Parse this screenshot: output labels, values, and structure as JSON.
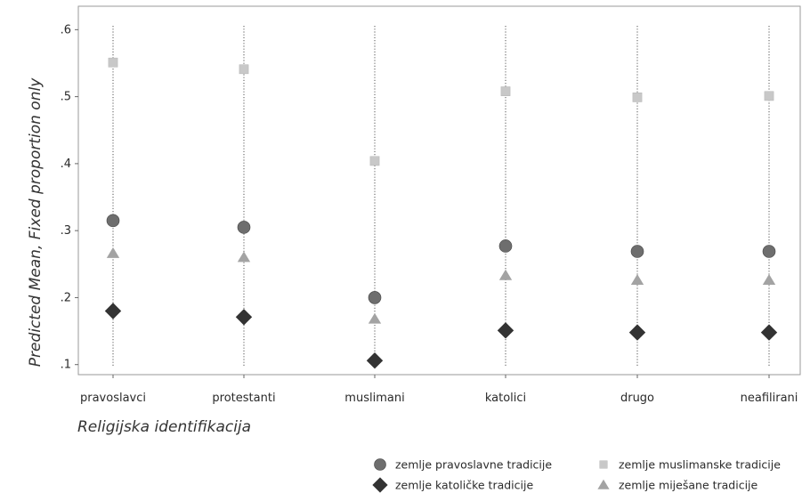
{
  "chart_data": {
    "type": "scatter",
    "xlabel": "Religijska identifikacija",
    "ylabel": "Predicted Mean, Fixed proportion only",
    "categories": [
      "pravoslavci",
      "protestanti",
      "muslimani",
      "katolici",
      "drugo",
      "neafilirani"
    ],
    "yticks": [
      ".1",
      ".2",
      ".3",
      ".4",
      ".5",
      ".6"
    ],
    "ylim": [
      0.085,
      0.635
    ],
    "grid": "vertical dotted lines at each category",
    "legend_position": "bottom-right",
    "series": [
      {
        "name": "zemlje pravoslavne tradicije",
        "marker": "circle",
        "color": "#6e6e6e",
        "values": [
          0.315,
          0.305,
          0.2,
          0.277,
          0.269,
          0.269
        ]
      },
      {
        "name": "zemlje muslimanske tradicije",
        "marker": "square",
        "color": "#c8c8c8",
        "values": [
          0.551,
          0.541,
          0.404,
          0.508,
          0.499,
          0.501
        ]
      },
      {
        "name": "zemlje katoličke tradicije",
        "marker": "diamond",
        "color": "#333333",
        "values": [
          0.18,
          0.171,
          0.106,
          0.151,
          0.148,
          0.148
        ]
      },
      {
        "name": "zemlje miješane tradicije",
        "marker": "triangle",
        "color": "#a3a3a3",
        "values": [
          0.266,
          0.26,
          0.168,
          0.233,
          0.226,
          0.226
        ]
      }
    ]
  }
}
